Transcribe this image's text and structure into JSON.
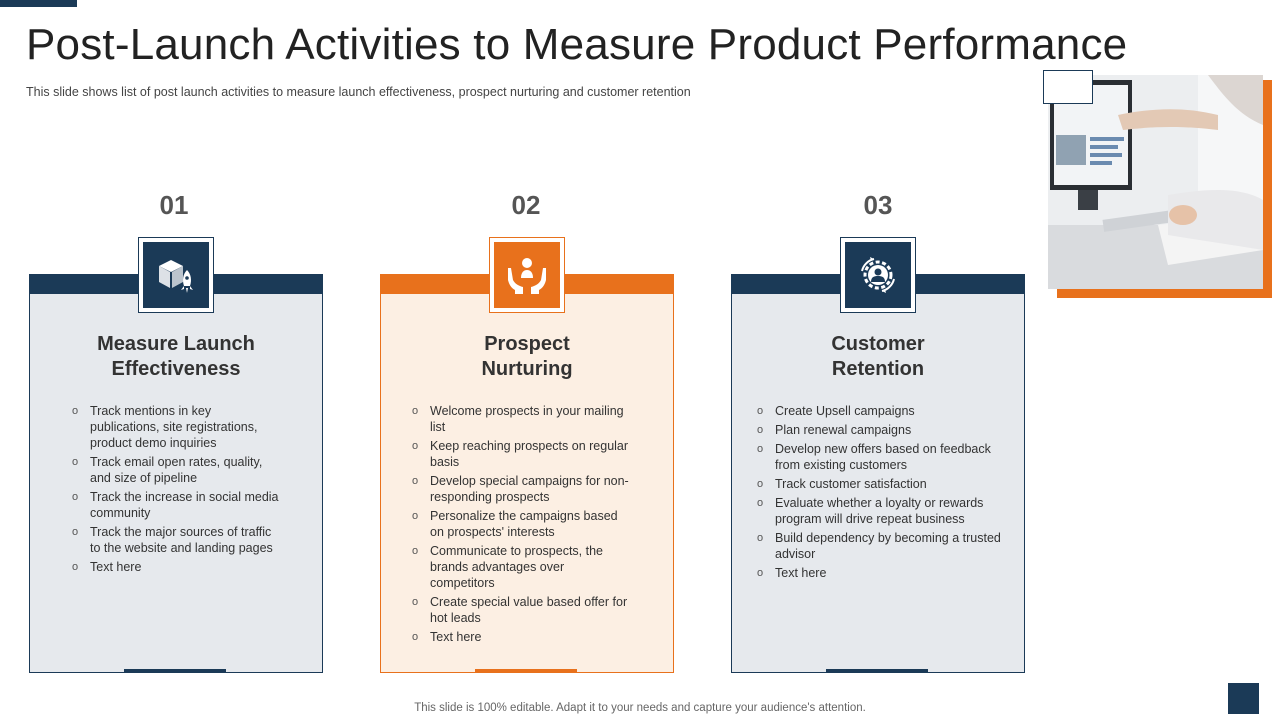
{
  "slide": {
    "title": "Post-Launch Activities to Measure Product Performance",
    "subtitle": "This slide shows list of post launch activities to measure launch effectiveness,  prospect nurturing and customer retention",
    "footer": "This slide is 100% editable. Adapt it to your needs and capture your audience's attention."
  },
  "colors": {
    "navy": "#1b3a57",
    "orange": "#e8711c",
    "card_gray": "#e6e9ed",
    "card_peach": "#fcefe3"
  },
  "columns": [
    {
      "number": "01",
      "icon": "box-rocket-icon",
      "title_lines": [
        "Measure Launch",
        "Effectiveness"
      ],
      "items": [
        "Track mentions in key publications, site registrations, product demo inquiries",
        "Track email open rates, quality, and size of pipeline",
        "Track the increase in social media community",
        "Track the major sources of traffic to the website and landing pages",
        "Text here"
      ]
    },
    {
      "number": "02",
      "icon": "hands-person-icon",
      "title_lines": [
        "Prospect",
        "Nurturing"
      ],
      "items": [
        "Welcome prospects in your mailing list",
        "Keep reaching prospects on regular basis",
        "Develop  special campaigns for non-responding  prospects",
        "Personalize the campaigns based on prospects' interests",
        "Communicate to prospects, the brands advantages  over competitors",
        "Create special value  based offer for hot leads",
        "Text here"
      ]
    },
    {
      "number": "03",
      "icon": "customer-gear-cycle-icon",
      "title_lines": [
        "Customer",
        "Retention"
      ],
      "items": [
        "Create Upsell campaigns",
        "Plan renewal  campaigns",
        "Develop  new offers based on feedback from existing customers",
        "Track customer satisfaction",
        "Evaluate  whether  a loyalty or rewards program will drive  repeat business",
        "Build dependency  by becoming  a trusted advisor",
        "Text here"
      ]
    }
  ]
}
